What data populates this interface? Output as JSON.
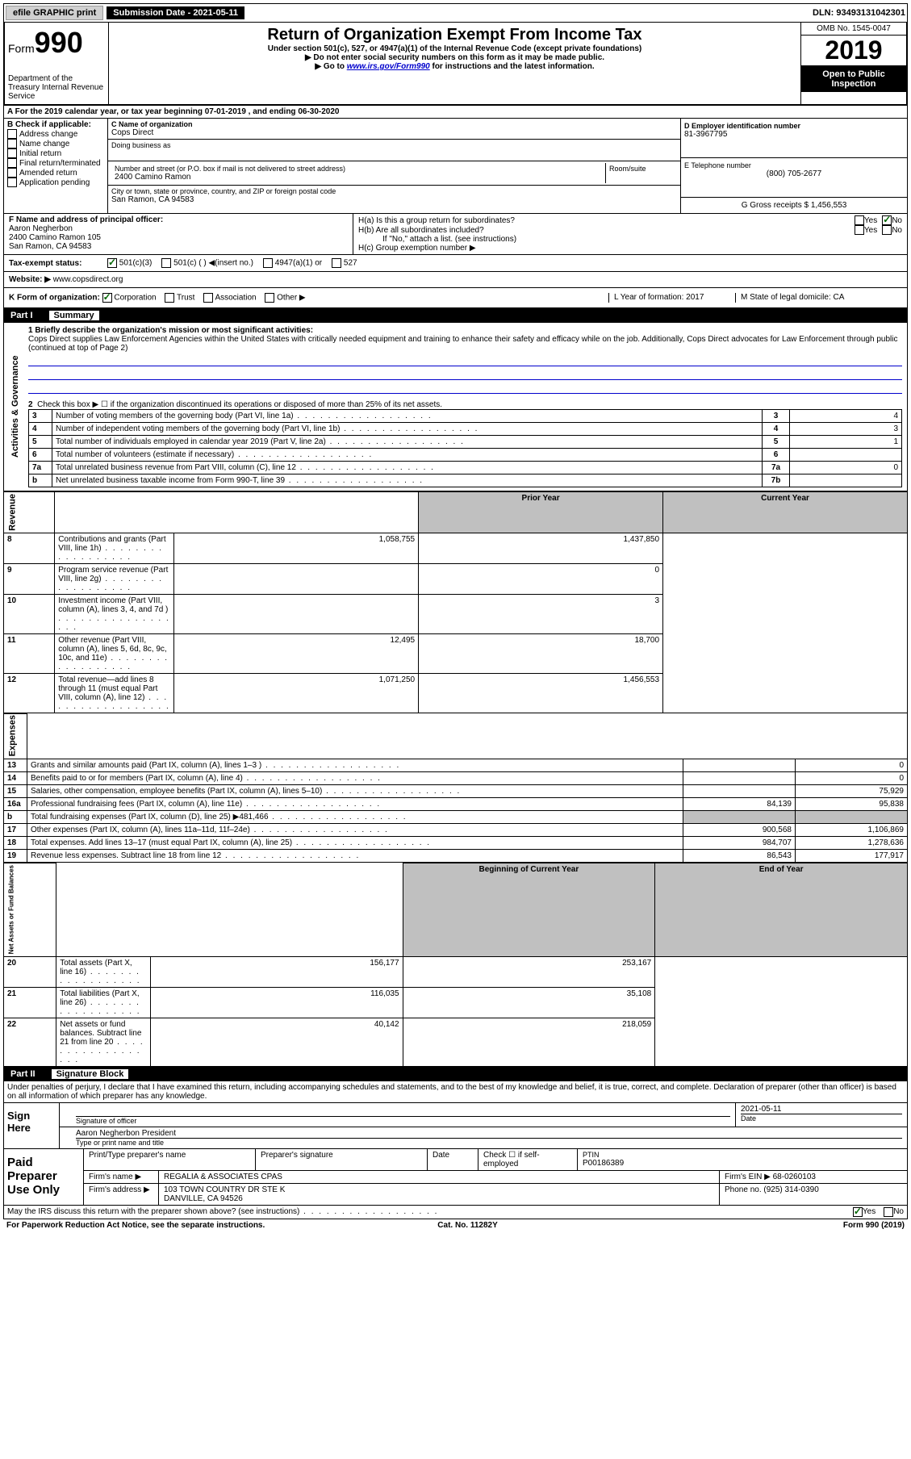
{
  "top": {
    "efile": "efile GRAPHIC print",
    "sub_label": "Submission Date - 2021-05-11",
    "dln": "DLN: 93493131042301"
  },
  "header": {
    "form_word": "Form",
    "form_num": "990",
    "dept": "Department of the Treasury\nInternal Revenue Service",
    "title": "Return of Organization Exempt From Income Tax",
    "sub1": "Under section 501(c), 527, or 4947(a)(1) of the Internal Revenue Code (except private foundations)",
    "sub2": "▶ Do not enter social security numbers on this form as it may be made public.",
    "sub3_pre": "▶ Go to ",
    "sub3_link": "www.irs.gov/Form990",
    "sub3_post": " for instructions and the latest information.",
    "omb": "OMB No. 1545-0047",
    "year": "2019",
    "open": "Open to Public Inspection"
  },
  "lineA": "A For the 2019 calendar year, or tax year beginning 07-01-2019    , and ending 06-30-2020",
  "colB": {
    "label": "B Check if applicable:",
    "items": [
      "Address change",
      "Name change",
      "Initial return",
      "Final return/terminated",
      "Amended return",
      "Application pending"
    ]
  },
  "colC": {
    "name_lbl": "C Name of organization",
    "name": "Cops Direct",
    "dba_lbl": "Doing business as",
    "addr_lbl": "Number and street (or P.O. box if mail is not delivered to street address)",
    "room_lbl": "Room/suite",
    "addr": "2400 Camino Ramon",
    "city_lbl": "City or town, state or province, country, and ZIP or foreign postal code",
    "city": "San Ramon, CA  94583"
  },
  "colD": {
    "ein_lbl": "D Employer identification number",
    "ein": "81-3967795",
    "tel_lbl": "E Telephone number",
    "tel": "(800) 705-2677",
    "gross_lbl": "G Gross receipts $ 1,456,553"
  },
  "rowF": {
    "lbl": "F  Name and address of principal officer:",
    "name": "Aaron Negherbon",
    "addr": "2400 Camino Ramon 105\nSan Ramon, CA  94583"
  },
  "rowH": {
    "ha": "H(a)  Is this a group return for subordinates?",
    "hb": "H(b)  Are all subordinates included?",
    "hb2": "If \"No,\" attach a list. (see instructions)",
    "hc": "H(c)  Group exemption number ▶",
    "yes": "Yes",
    "no": "No"
  },
  "rowI": {
    "lbl": "Tax-exempt status:",
    "o1": "501(c)(3)",
    "o2": "501(c) (  ) ◀(insert no.)",
    "o3": "4947(a)(1) or",
    "o4": "527"
  },
  "rowJ": {
    "lbl": "Website: ▶",
    "val": "www.copsdirect.org"
  },
  "rowK": {
    "lbl": "K Form of organization:",
    "o1": "Corporation",
    "o2": "Trust",
    "o3": "Association",
    "o4": "Other ▶",
    "l_lbl": "L Year of formation: 2017",
    "m_lbl": "M State of legal domicile: CA"
  },
  "part1": {
    "num": "Part I",
    "title": "Summary",
    "q1_lbl": "1  Briefly describe the organization's mission or most significant activities:",
    "q1_text": "Cops Direct supplies Law Enforcement Agencies within the United States with critically needed equipment and training to enhance their safety and efficacy while on the job. Additionally, Cops Direct advocates for Law Enforcement through public (continued at top of Page 2)",
    "q2": "Check this box ▶ ☐  if the organization discontinued its operations or disposed of more than 25% of its net assets.",
    "rows_gov": [
      {
        "n": "3",
        "d": "Number of voting members of the governing body (Part VI, line 1a)",
        "i": "3",
        "v": "4"
      },
      {
        "n": "4",
        "d": "Number of independent voting members of the governing body (Part VI, line 1b)",
        "i": "4",
        "v": "3"
      },
      {
        "n": "5",
        "d": "Total number of individuals employed in calendar year 2019 (Part V, line 2a)",
        "i": "5",
        "v": "1"
      },
      {
        "n": "6",
        "d": "Total number of volunteers (estimate if necessary)",
        "i": "6",
        "v": ""
      },
      {
        "n": "7a",
        "d": "Total unrelated business revenue from Part VIII, column (C), line 12",
        "i": "7a",
        "v": "0"
      },
      {
        "n": "b",
        "d": "Net unrelated business taxable income from Form 990-T, line 39",
        "i": "7b",
        "v": ""
      }
    ],
    "hdr_prior": "Prior Year",
    "hdr_curr": "Current Year",
    "rows_rev": [
      {
        "n": "8",
        "d": "Contributions and grants (Part VIII, line 1h)",
        "p": "1,058,755",
        "c": "1,437,850"
      },
      {
        "n": "9",
        "d": "Program service revenue (Part VIII, line 2g)",
        "p": "",
        "c": "0"
      },
      {
        "n": "10",
        "d": "Investment income (Part VIII, column (A), lines 3, 4, and 7d )",
        "p": "",
        "c": "3"
      },
      {
        "n": "11",
        "d": "Other revenue (Part VIII, column (A), lines 5, 6d, 8c, 9c, 10c, and 11e)",
        "p": "12,495",
        "c": "18,700"
      },
      {
        "n": "12",
        "d": "Total revenue—add lines 8 through 11 (must equal Part VIII, column (A), line 12)",
        "p": "1,071,250",
        "c": "1,456,553"
      }
    ],
    "rows_exp": [
      {
        "n": "13",
        "d": "Grants and similar amounts paid (Part IX, column (A), lines 1–3 )",
        "p": "",
        "c": "0"
      },
      {
        "n": "14",
        "d": "Benefits paid to or for members (Part IX, column (A), line 4)",
        "p": "",
        "c": "0"
      },
      {
        "n": "15",
        "d": "Salaries, other compensation, employee benefits (Part IX, column (A), lines 5–10)",
        "p": "",
        "c": "75,929"
      },
      {
        "n": "16a",
        "d": "Professional fundraising fees (Part IX, column (A), line 11e)",
        "p": "84,139",
        "c": "95,838"
      },
      {
        "n": "b",
        "d": "Total fundraising expenses (Part IX, column (D), line 25) ▶481,466",
        "p": "GREY",
        "c": "GREY"
      },
      {
        "n": "17",
        "d": "Other expenses (Part IX, column (A), lines 11a–11d, 11f–24e)",
        "p": "900,568",
        "c": "1,106,869"
      },
      {
        "n": "18",
        "d": "Total expenses. Add lines 13–17 (must equal Part IX, column (A), line 25)",
        "p": "984,707",
        "c": "1,278,636"
      },
      {
        "n": "19",
        "d": "Revenue less expenses. Subtract line 18 from line 12",
        "p": "86,543",
        "c": "177,917"
      }
    ],
    "hdr_begin": "Beginning of Current Year",
    "hdr_end": "End of Year",
    "rows_net": [
      {
        "n": "20",
        "d": "Total assets (Part X, line 16)",
        "p": "156,177",
        "c": "253,167"
      },
      {
        "n": "21",
        "d": "Total liabilities (Part X, line 26)",
        "p": "116,035",
        "c": "35,108"
      },
      {
        "n": "22",
        "d": "Net assets or fund balances. Subtract line 21 from line 20",
        "p": "40,142",
        "c": "218,059"
      }
    ],
    "vlabels": {
      "gov": "Activities & Governance",
      "rev": "Revenue",
      "exp": "Expenses",
      "net": "Net Assets or Fund Balances"
    }
  },
  "part2": {
    "num": "Part II",
    "title": "Signature Block",
    "decl": "Under penalties of perjury, I declare that I have examined this return, including accompanying schedules and statements, and to the best of my knowledge and belief, it is true, correct, and complete. Declaration of preparer (other than officer) is based on all information of which preparer has any knowledge.",
    "sign_here": "Sign Here",
    "sig_lbl": "Signature of officer",
    "date_lbl": "Date",
    "date_val": "2021-05-11",
    "name_val": "Aaron Negherbon  President",
    "name_lbl": "Type or print name and title",
    "paid": "Paid Preparer Use Only",
    "p_name_lbl": "Print/Type preparer's name",
    "p_sig_lbl": "Preparer's signature",
    "p_date_lbl": "Date",
    "p_check": "Check ☐ if self-employed",
    "p_ptin_lbl": "PTIN",
    "p_ptin": "P00186389",
    "firm_name_lbl": "Firm's name    ▶",
    "firm_name": "REGALIA & ASSOCIATES CPAS",
    "firm_ein_lbl": "Firm's EIN ▶",
    "firm_ein": "68-0260103",
    "firm_addr_lbl": "Firm's address ▶",
    "firm_addr": "103 TOWN COUNTRY DR STE K",
    "firm_city": "DANVILLE, CA  94526",
    "phone_lbl": "Phone no.",
    "phone": "(925) 314-0390",
    "discuss": "May the IRS discuss this return with the preparer shown above? (see instructions)"
  },
  "footer": {
    "pra": "For Paperwork Reduction Act Notice, see the separate instructions.",
    "cat": "Cat. No. 11282Y",
    "form": "Form 990 (2019)"
  }
}
